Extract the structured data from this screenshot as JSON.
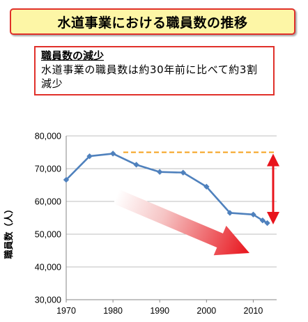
{
  "title": "水道事業における職員数の推移",
  "note": {
    "heading": "職員数の減少",
    "body": "水道事業の職員数は約30年前に比べて約3割減少"
  },
  "colors": {
    "title_background": "#fdf6a6",
    "title_border": "#e0302a",
    "series_line": "#4f81bd",
    "reference_line": "#f5a21c",
    "double_arrow": "#e8141c",
    "trend_arrow": "#e8141c"
  },
  "chart_data": {
    "type": "line",
    "ylabel": "職員数（人）",
    "xlabel": "",
    "x_ticks": [
      1970,
      1980,
      1990,
      2000,
      2010
    ],
    "y_ticks": [
      "30,000",
      "40,000",
      "50,000",
      "60,000",
      "70,000",
      "80,000"
    ],
    "xlim": [
      1970,
      2015
    ],
    "ylim": [
      30000,
      80000
    ],
    "grid": true,
    "series": [
      {
        "x": [
          1970,
          1975,
          1980,
          1985,
          1990,
          1995,
          2000,
          2005,
          2010,
          2012,
          2013
        ],
        "values": [
          66600,
          73800,
          74600,
          71200,
          69000,
          68800,
          64500,
          56500,
          56000,
          54200,
          53400
        ]
      }
    ],
    "annotations": {
      "reference_level": 75000,
      "double_arrow": [
        75000,
        53400
      ],
      "trend_arrow": "decrease"
    }
  }
}
